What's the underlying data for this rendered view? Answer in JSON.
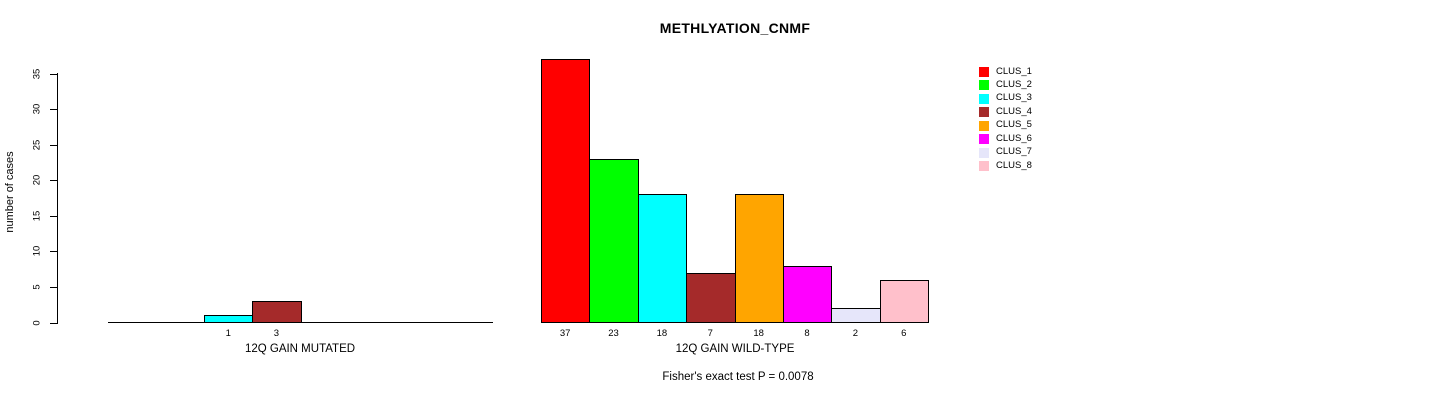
{
  "chart_data": {
    "type": "bar",
    "title": "METHLYATION_CNMF",
    "ylabel": "number of cases",
    "ylim": [
      0,
      35
    ],
    "yticks": [
      0,
      5,
      10,
      15,
      20,
      25,
      30,
      35
    ],
    "grid": false,
    "legend_position": "topright",
    "clusters": [
      "CLUS_1",
      "CLUS_2",
      "CLUS_3",
      "CLUS_4",
      "CLUS_5",
      "CLUS_6",
      "CLUS_7",
      "CLUS_8"
    ],
    "colors": [
      "#ff0000",
      "#00ff00",
      "#00ffff",
      "#a52a2a",
      "#ffa500",
      "#ff00ff",
      "#e6e6fa",
      "#ffc0cb"
    ],
    "groups": [
      {
        "label": "12Q GAIN MUTATED",
        "values": [
          0,
          0,
          1,
          3,
          0,
          0,
          0,
          0
        ]
      },
      {
        "label": "12Q GAIN WILD-TYPE",
        "values": [
          37,
          23,
          18,
          7,
          18,
          8,
          2,
          6
        ]
      }
    ],
    "annotation": "Fisher's exact test P = 0.0078"
  }
}
